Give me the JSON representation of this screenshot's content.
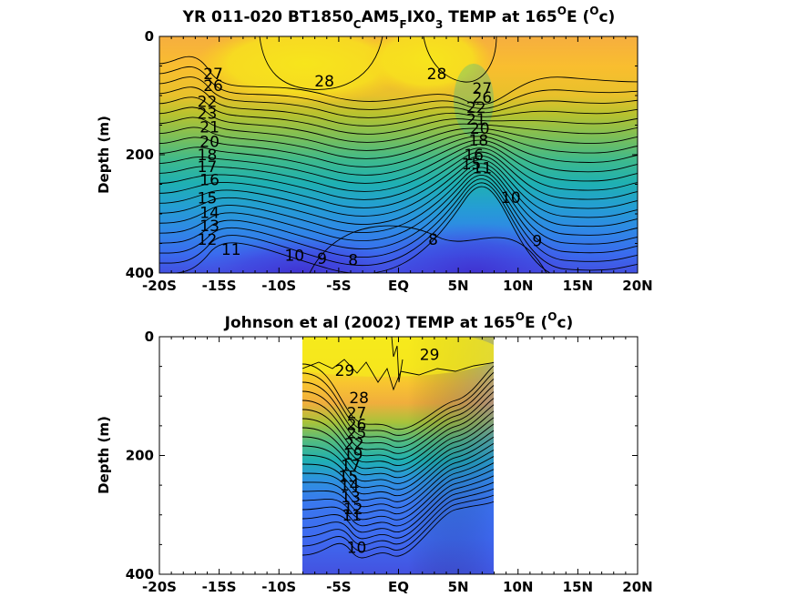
{
  "chart_data": [
    {
      "type": "contour",
      "title": {
        "prefix": "YR 011-020 BT1850",
        "s1": "C",
        "t1": "AM5",
        "s2": "F",
        "t2": "IX0",
        "s3": "3",
        "t3": " TEMP at 165",
        "sup1": "O",
        "t4": "E (",
        "sup2": "O",
        "t5": "c)"
      },
      "ylabel": "Depth (m)",
      "x_tick_labels": [
        "-20S",
        "-15S",
        "-10S",
        "-5S",
        "EQ",
        "5N",
        "10N",
        "15N",
        "20N"
      ],
      "x_ticks": [
        -20,
        -15,
        -10,
        -5,
        0,
        5,
        10,
        15,
        20
      ],
      "y_tick_labels": [
        "0",
        "200",
        "400"
      ],
      "y_ticks": [
        0,
        200,
        400
      ],
      "xlim": [
        -20,
        20
      ],
      "ylim": [
        0,
        400
      ],
      "y_reversed": true,
      "data_extent": [
        -20,
        20
      ],
      "colormap": "parula",
      "contour_labels": [
        {
          "text": "28",
          "lat": -6.2,
          "depth": 75
        },
        {
          "text": "27",
          "lat": -15.5,
          "depth": 63
        },
        {
          "text": "26",
          "lat": -15.5,
          "depth": 83
        },
        {
          "text": "22",
          "lat": -16.0,
          "depth": 110
        },
        {
          "text": "23",
          "lat": -16.0,
          "depth": 130
        },
        {
          "text": "21",
          "lat": -15.8,
          "depth": 153
        },
        {
          "text": "20",
          "lat": -15.8,
          "depth": 178
        },
        {
          "text": "18",
          "lat": -16.0,
          "depth": 200
        },
        {
          "text": "17",
          "lat": -16.0,
          "depth": 220
        },
        {
          "text": "16",
          "lat": -15.8,
          "depth": 242
        },
        {
          "text": "15",
          "lat": -16.0,
          "depth": 273
        },
        {
          "text": "14",
          "lat": -15.8,
          "depth": 298
        },
        {
          "text": "13",
          "lat": -15.8,
          "depth": 320
        },
        {
          "text": "12",
          "lat": -16.0,
          "depth": 343
        },
        {
          "text": "11",
          "lat": -14.0,
          "depth": 360
        },
        {
          "text": "10",
          "lat": -8.7,
          "depth": 370
        },
        {
          "text": "9",
          "lat": -6.4,
          "depth": 375
        },
        {
          "text": "8",
          "lat": -3.8,
          "depth": 378
        },
        {
          "text": "8",
          "lat": 2.9,
          "depth": 343
        },
        {
          "text": "28",
          "lat": 3.2,
          "depth": 63
        },
        {
          "text": "27",
          "lat": 7.0,
          "depth": 88
        },
        {
          "text": "26",
          "lat": 7.0,
          "depth": 103
        },
        {
          "text": "22",
          "lat": 6.5,
          "depth": 120
        },
        {
          "text": "21",
          "lat": 6.5,
          "depth": 140
        },
        {
          "text": "20",
          "lat": 6.8,
          "depth": 155
        },
        {
          "text": "18",
          "lat": 6.7,
          "depth": 175
        },
        {
          "text": "16",
          "lat": 6.3,
          "depth": 200
        },
        {
          "text": "15",
          "lat": 6.1,
          "depth": 215
        },
        {
          "text": "11",
          "lat": 7.0,
          "depth": 222
        },
        {
          "text": "10",
          "lat": 9.4,
          "depth": 272
        },
        {
          "text": "9",
          "lat": 11.6,
          "depth": 345
        }
      ]
    },
    {
      "type": "contour",
      "title": {
        "t1": "Johnson et al (2002) TEMP at 165",
        "sup1": "O",
        "t2": "E (",
        "sup2": "O",
        "t3": "c)"
      },
      "ylabel": "Depth (m)",
      "x_tick_labels": [
        "-20S",
        "-15S",
        "-10S",
        "-5S",
        "EQ",
        "5N",
        "10N",
        "15N",
        "20N"
      ],
      "x_ticks": [
        -20,
        -15,
        -10,
        -5,
        0,
        5,
        10,
        15,
        20
      ],
      "y_tick_labels": [
        "0",
        "200",
        "400"
      ],
      "y_ticks": [
        0,
        200,
        400
      ],
      "xlim": [
        -20,
        20
      ],
      "ylim": [
        0,
        400
      ],
      "y_reversed": true,
      "data_extent": [
        -8,
        8
      ],
      "colormap": "parula",
      "contour_labels": [
        {
          "text": "29",
          "lat": -4.5,
          "depth": 57
        },
        {
          "text": "29",
          "lat": 2.6,
          "depth": 30
        },
        {
          "text": "28",
          "lat": -3.3,
          "depth": 103
        },
        {
          "text": "27",
          "lat": -3.5,
          "depth": 128
        },
        {
          "text": "26",
          "lat": -3.5,
          "depth": 148
        },
        {
          "text": "25",
          "lat": -3.5,
          "depth": 162
        },
        {
          "text": "22",
          "lat": -3.7,
          "depth": 180
        },
        {
          "text": "19",
          "lat": -3.8,
          "depth": 198
        },
        {
          "text": "17",
          "lat": -4.0,
          "depth": 217
        },
        {
          "text": "15",
          "lat": -4.2,
          "depth": 235
        },
        {
          "text": "14",
          "lat": -4.1,
          "depth": 250
        },
        {
          "text": "13",
          "lat": -4.0,
          "depth": 270
        },
        {
          "text": "12",
          "lat": -3.8,
          "depth": 290
        },
        {
          "text": "11",
          "lat": -3.9,
          "depth": 300
        },
        {
          "text": "10",
          "lat": -3.5,
          "depth": 355
        }
      ]
    }
  ]
}
